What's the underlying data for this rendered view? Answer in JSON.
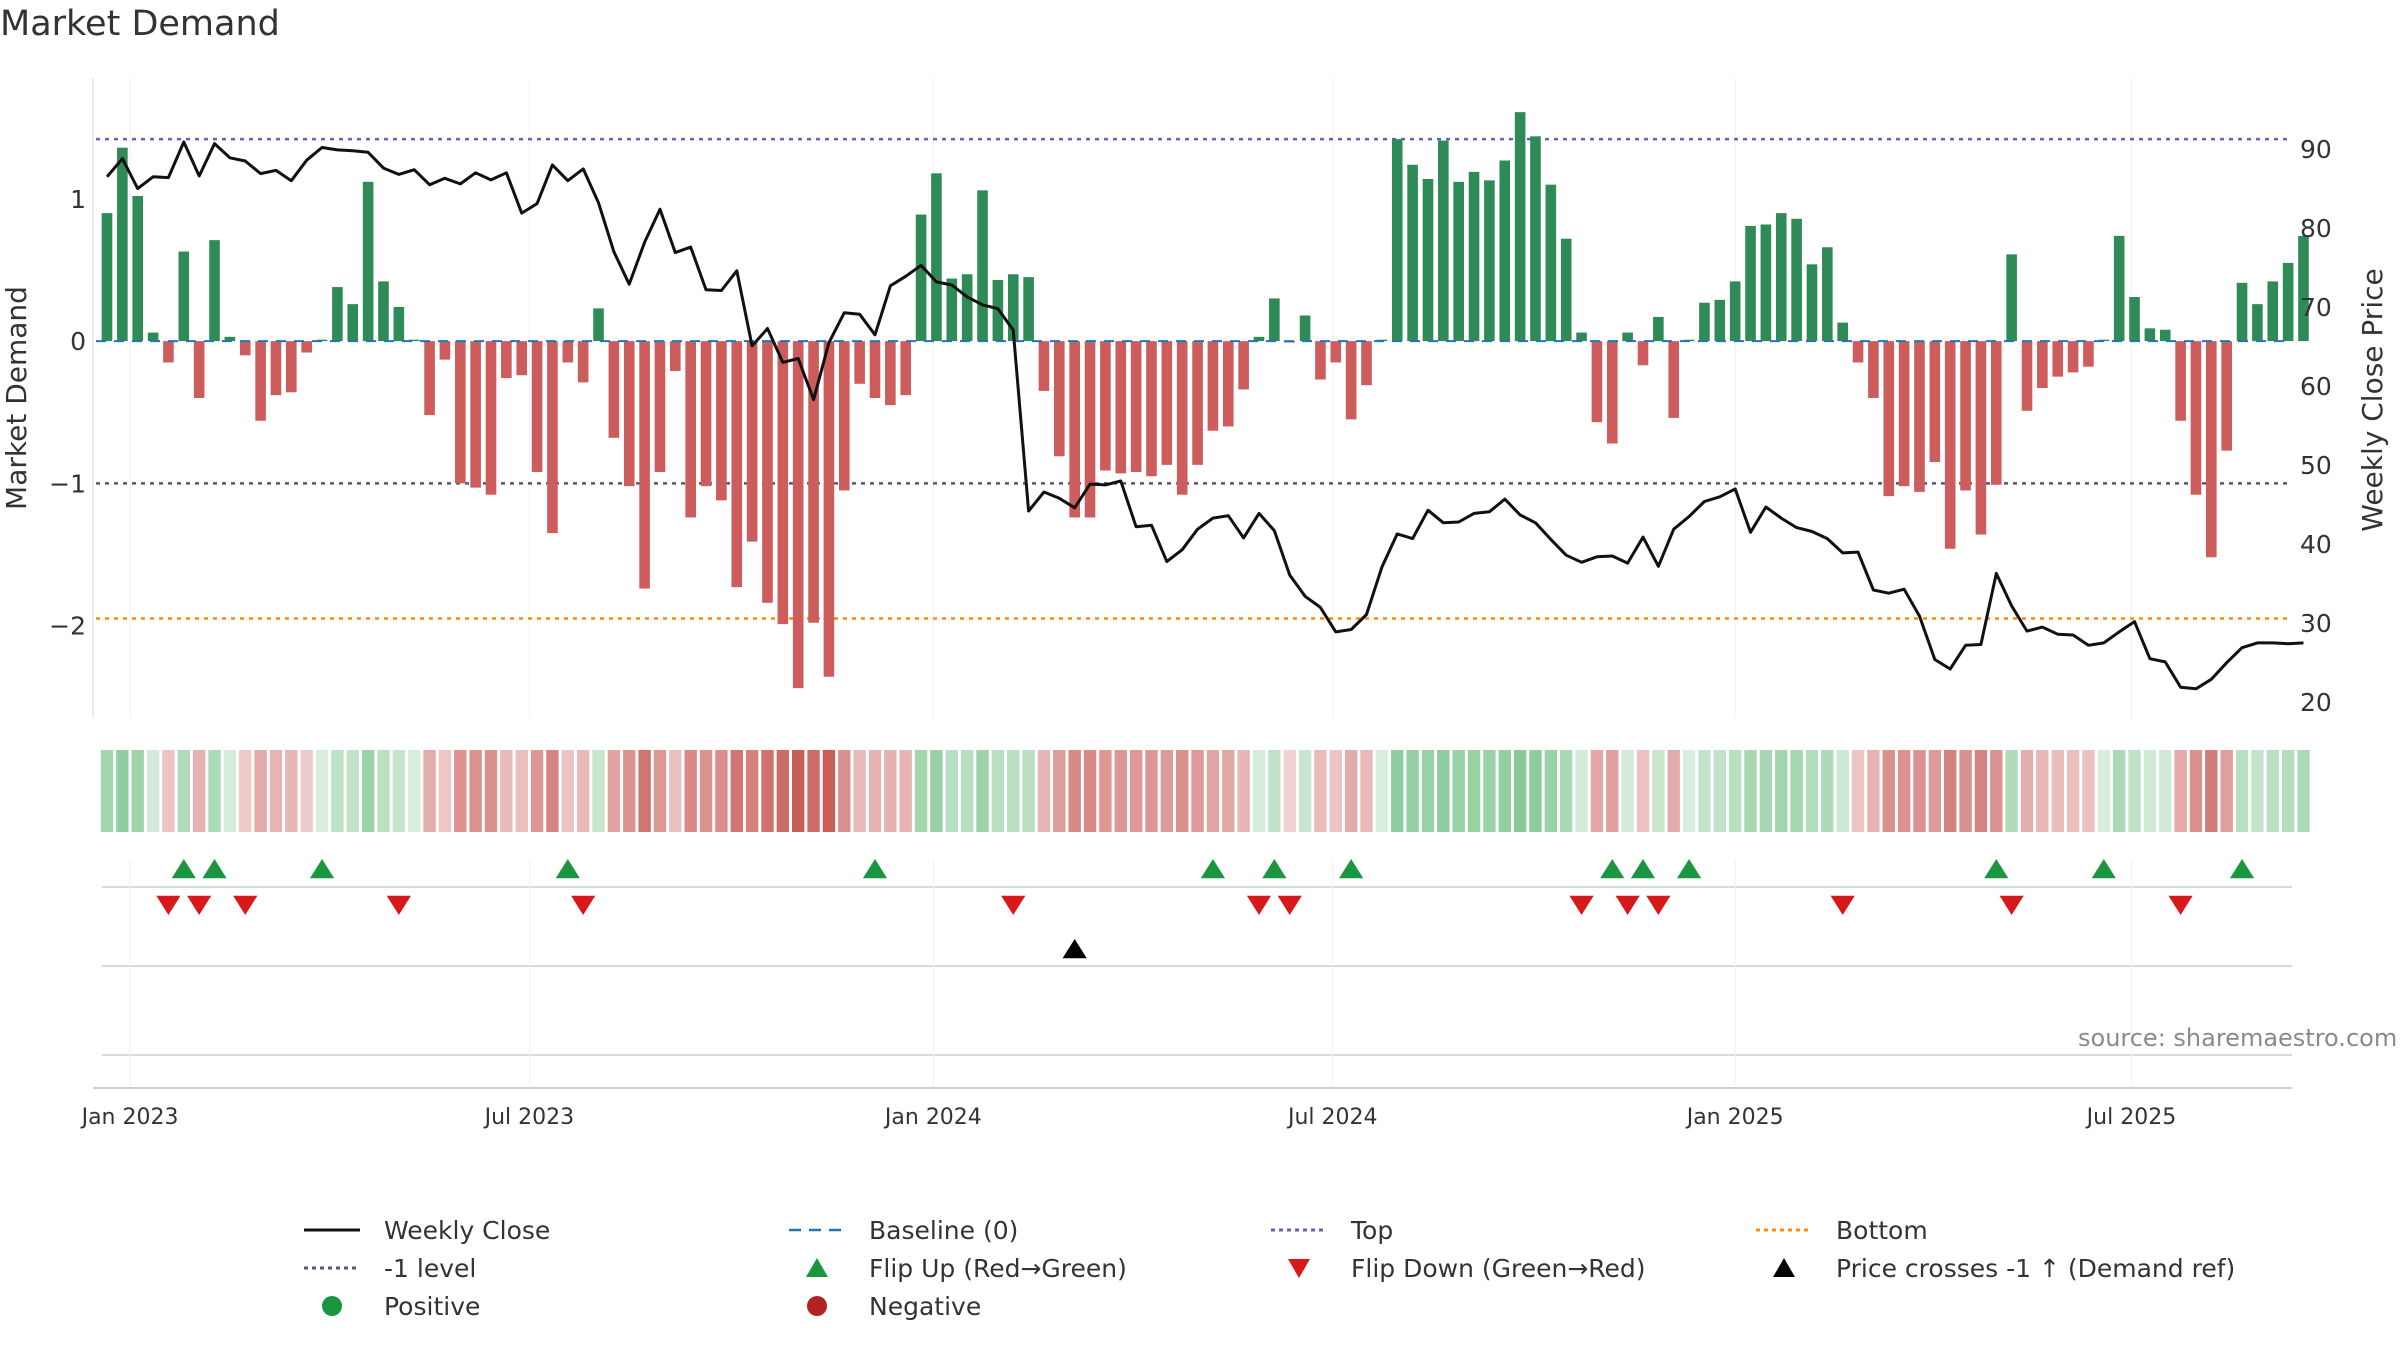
{
  "title": "Market Demand",
  "source": "source: sharemaestro.com",
  "colors": {
    "positive_bar": "#2e8b57",
    "negative_bar": "#cd5c5c",
    "close_line": "#111111",
    "top_line": "#6a5acd",
    "bottom_line": "#ff8c00",
    "neg1_line": "#555577",
    "baseline": "#1f77b4",
    "flip_up": "#1a9641",
    "flip_down": "#d7191c",
    "cross": "#000000",
    "positive_dot": "#1a9641",
    "negative_dot": "#b22222"
  },
  "legend": [
    {
      "key": "close",
      "label": "Weekly Close",
      "icon": "solid-line"
    },
    {
      "key": "baseline",
      "label": "Baseline (0)",
      "icon": "dashed-line"
    },
    {
      "key": "top",
      "label": "Top",
      "icon": "dotted-line"
    },
    {
      "key": "bottom",
      "label": "Bottom",
      "icon": "dotted-line"
    },
    {
      "key": "neg1",
      "label": "-1 level",
      "icon": "dotted-line"
    },
    {
      "key": "flipup",
      "label": "Flip Up (Red→Green)",
      "icon": "triangle-up"
    },
    {
      "key": "flipdown",
      "label": "Flip Down (Green→Red)",
      "icon": "triangle-down"
    },
    {
      "key": "cross",
      "label": "Price crosses -1 ↑ (Demand ref)",
      "icon": "triangle-up"
    },
    {
      "key": "positive",
      "label": "Positive",
      "icon": "dot"
    },
    {
      "key": "negative",
      "label": "Negative",
      "icon": "dot"
    }
  ],
  "chart_data": {
    "type": "bar+line",
    "title": "Market Demand",
    "ylabel_left": "Market Demand",
    "ylabel_right": "Weekly Close Price",
    "ylim_left": [
      -2.65,
      1.85
    ],
    "ylim_right": [
      18,
      99
    ],
    "yticks_left": [
      1,
      0,
      -1,
      -2
    ],
    "yticks_left_labels": [
      "1",
      "0",
      "−1",
      "−2"
    ],
    "yticks_right": [
      90,
      80,
      70,
      60,
      50,
      40,
      30,
      20
    ],
    "x_labels": [
      "Jan 2023",
      "Jul 2023",
      "Jan 2024",
      "Jul 2024",
      "Jan 2025",
      "Jul 2025"
    ],
    "x_label_index": [
      1.5,
      27.5,
      53.8,
      79.8,
      106.0,
      131.8
    ],
    "reference_lines": {
      "top": 1.42,
      "neg1": -1.0,
      "bottom": -1.95,
      "baseline": 0
    },
    "demand": [
      0.9,
      1.36,
      1.02,
      0.06,
      -0.15,
      0.63,
      -0.4,
      0.71,
      0.03,
      -0.1,
      -0.56,
      -0.38,
      -0.36,
      -0.08,
      0.01,
      0.38,
      0.26,
      1.12,
      0.42,
      0.24,
      0.01,
      -0.52,
      -0.13,
      -1.0,
      -1.03,
      -1.08,
      -0.26,
      -0.24,
      -0.92,
      -1.35,
      -0.15,
      -0.29,
      0.23,
      -0.68,
      -1.02,
      -1.74,
      -0.92,
      -0.21,
      -1.24,
      -1.02,
      -1.12,
      -1.73,
      -1.41,
      -1.84,
      -1.99,
      -2.44,
      -1.98,
      -2.36,
      -1.05,
      -0.3,
      -0.4,
      -0.45,
      -0.38,
      0.89,
      1.18,
      0.44,
      0.47,
      1.06,
      0.43,
      0.47,
      0.45,
      -0.35,
      -0.81,
      -1.24,
      -1.24,
      -0.91,
      -0.93,
      -0.92,
      -0.95,
      -0.87,
      -1.08,
      -0.87,
      -0.63,
      -0.6,
      -0.34,
      0.03,
      0.3,
      -0.01,
      0.18,
      -0.27,
      -0.15,
      -0.55,
      -0.31,
      0.01,
      1.42,
      1.24,
      1.14,
      1.41,
      1.12,
      1.19,
      1.13,
      1.27,
      1.61,
      1.44,
      1.1,
      0.72,
      0.06,
      -0.57,
      -0.72,
      0.06,
      -0.17,
      0.17,
      -0.54,
      0.01,
      0.27,
      0.29,
      0.42,
      0.81,
      0.82,
      0.9,
      0.86,
      0.54,
      0.66,
      0.13,
      -0.15,
      -0.4,
      -1.09,
      -1.02,
      -1.06,
      -0.85,
      -1.46,
      -1.05,
      -1.36,
      -1.01,
      0.61,
      -0.49,
      -0.33,
      -0.25,
      -0.22,
      -0.18,
      0.01,
      0.74,
      0.31,
      0.09,
      0.08,
      -0.56,
      -1.08,
      -1.52,
      -0.77,
      0.41,
      0.26,
      0.42,
      0.55,
      0.74
    ],
    "weekly_close": [
      86.5,
      88.8,
      85.0,
      86.5,
      86.4,
      90.9,
      86.6,
      90.7,
      88.9,
      88.5,
      86.9,
      87.3,
      86.0,
      88.6,
      90.2,
      89.9,
      89.8,
      89.6,
      87.6,
      86.8,
      87.4,
      85.5,
      86.3,
      85.6,
      87.0,
      86.1,
      87.0,
      81.9,
      83.1,
      88.0,
      86.0,
      87.5,
      83.2,
      77.0,
      72.9,
      78.2,
      82.4,
      76.9,
      77.6,
      72.2,
      72.1,
      74.6,
      65.1,
      67.3,
      63.0,
      63.5,
      58.3,
      65.5,
      69.3,
      69.1,
      66.5,
      72.7,
      73.9,
      75.3,
      73.2,
      72.8,
      71.3,
      70.3,
      69.8,
      67.1,
      44.2,
      46.6,
      45.8,
      44.6,
      47.6,
      47.5,
      48.0,
      42.2,
      42.4,
      37.8,
      39.3,
      41.9,
      43.3,
      43.6,
      40.8,
      43.9,
      41.7,
      36.1,
      33.4,
      32.0,
      28.9,
      29.2,
      31.1,
      37.1,
      41.3,
      40.7,
      44.3,
      42.7,
      42.8,
      43.9,
      44.1,
      45.7,
      43.7,
      42.7,
      40.6,
      38.6,
      37.7,
      38.4,
      38.5,
      37.6,
      40.9,
      37.2,
      41.9,
      43.5,
      45.4,
      46.0,
      47.0,
      41.5,
      44.7,
      43.3,
      42.1,
      41.6,
      40.7,
      38.9,
      39.0,
      34.2,
      33.8,
      34.3,
      30.9,
      25.4,
      24.2,
      27.2,
      27.3,
      36.3,
      32.2,
      29.0,
      29.5,
      28.6,
      28.5,
      27.2,
      27.5,
      28.9,
      30.2,
      25.5,
      25.1,
      21.9,
      21.7,
      22.9,
      25.0,
      26.9,
      27.5,
      27.5,
      27.4,
      27.5
    ],
    "flip_up_index": [
      5,
      7,
      14,
      30,
      50,
      72,
      76,
      81,
      98,
      100,
      103,
      123,
      130,
      139
    ],
    "flip_down_index": [
      4,
      6,
      9,
      19,
      31,
      59,
      75,
      77,
      96,
      99,
      101,
      113,
      124,
      135
    ],
    "price_cross_index": [
      63
    ]
  }
}
